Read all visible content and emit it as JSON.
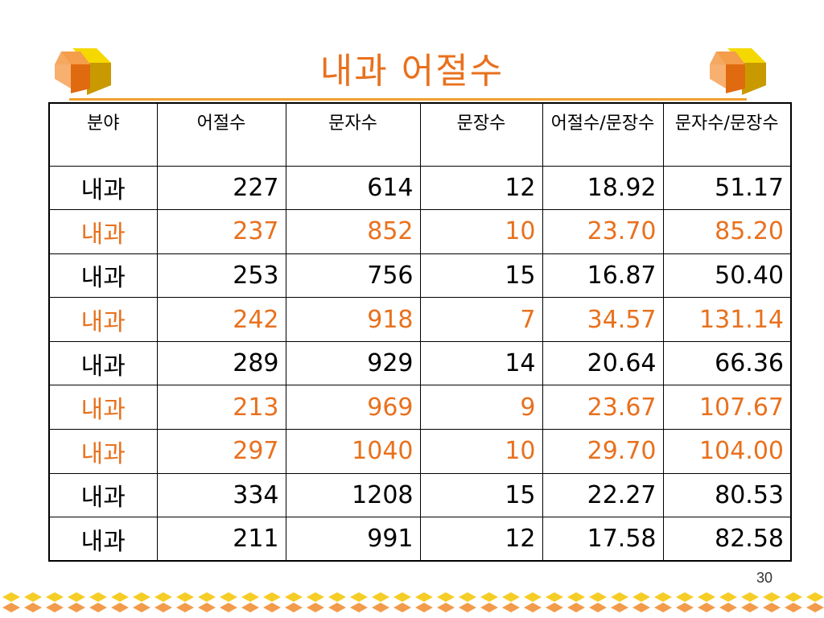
{
  "slide": {
    "title": "내과 어절수",
    "page_number": "30"
  },
  "colors": {
    "accent": "#e8711e",
    "cube_orange": "#f08a2c",
    "cube_yellow": "#f5c400",
    "rule": "#f0a030"
  },
  "table": {
    "headers": [
      "분야",
      "어절수",
      "문자수",
      "문장수",
      "어절수/문장수",
      "문자수/문장수"
    ],
    "rows": [
      {
        "highlight": false,
        "cells": [
          "내과",
          "227",
          "614",
          "12",
          "18.92",
          "51.17"
        ]
      },
      {
        "highlight": true,
        "cells": [
          "내과",
          "237",
          "852",
          "10",
          "23.70",
          "85.20"
        ]
      },
      {
        "highlight": false,
        "cells": [
          "내과",
          "253",
          "756",
          "15",
          "16.87",
          "50.40"
        ]
      },
      {
        "highlight": true,
        "cells": [
          "내과",
          "242",
          "918",
          "7",
          "34.57",
          "131.14"
        ]
      },
      {
        "highlight": false,
        "cells": [
          "내과",
          "289",
          "929",
          "14",
          "20.64",
          "66.36"
        ]
      },
      {
        "highlight": true,
        "cells": [
          "내과",
          "213",
          "969",
          "9",
          "23.67",
          "107.67"
        ]
      },
      {
        "highlight": true,
        "cells": [
          "내과",
          "297",
          "1040",
          "10",
          "29.70",
          "104.00"
        ]
      },
      {
        "highlight": false,
        "cells": [
          "내과",
          "334",
          "1208",
          "15",
          "22.27",
          "80.53"
        ]
      },
      {
        "highlight": false,
        "cells": [
          "내과",
          "211",
          "991",
          "12",
          "17.58",
          "82.58"
        ]
      }
    ]
  },
  "decorations": {
    "left_icon": "cube-icon",
    "right_icon": "cube-icon",
    "footer_icon": "diamond-pattern-icon"
  }
}
